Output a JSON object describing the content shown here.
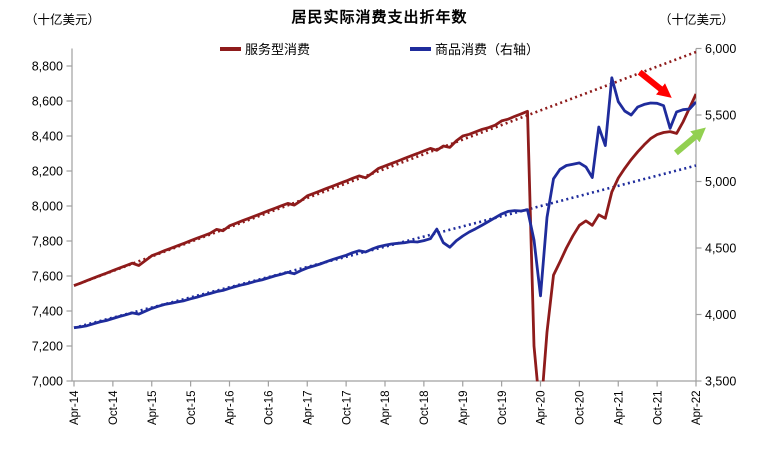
{
  "header": {
    "left_unit": "（十亿美元）",
    "title": "居民实际消费支出折年数",
    "right_unit": "（十亿美元）"
  },
  "legend": {
    "services": {
      "label": "服务型消费",
      "color": "#8E1B1B"
    },
    "goods": {
      "label": "商品消费（右轴）",
      "color": "#1F2C9C"
    }
  },
  "chart_data": {
    "type": "line",
    "title": "居民实际消费支出折年数",
    "unit_left": "（十亿美元）",
    "unit_right": "（十亿美元）",
    "frequency": "monthly",
    "x_start": "Apr-14",
    "x_end": "Apr-22",
    "x_tick_labels": [
      "Apr-14",
      "Oct-14",
      "Apr-15",
      "Oct-15",
      "Apr-16",
      "Oct-16",
      "Apr-17",
      "Oct-17",
      "Apr-18",
      "Oct-18",
      "Apr-19",
      "Oct-19",
      "Apr-20",
      "Oct-20",
      "Apr-21",
      "Oct-21",
      "Apr-22"
    ],
    "left_axis": {
      "min": 7000,
      "max": 8900,
      "ticks": [
        7000,
        7200,
        7400,
        7600,
        7800,
        8000,
        8200,
        8400,
        8600,
        8800
      ]
    },
    "right_axis": {
      "min": 3500,
      "max": 6000,
      "ticks": [
        3500,
        4000,
        4500,
        5000,
        5500,
        6000
      ]
    },
    "grid": false,
    "legend_position": "top-center",
    "series": [
      {
        "name": "服务型消费",
        "axis": "left",
        "color": "#8E1B1B",
        "style": "solid",
        "values": [
          7545,
          7559,
          7574,
          7588,
          7602,
          7616,
          7631,
          7645,
          7659,
          7673,
          7660,
          7688,
          7716,
          7730,
          7745,
          7759,
          7773,
          7787,
          7802,
          7816,
          7830,
          7844,
          7866,
          7858,
          7887,
          7901,
          7916,
          7930,
          7944,
          7958,
          7973,
          7987,
          8001,
          8015,
          8005,
          8030,
          8058,
          8072,
          8086,
          8101,
          8115,
          8129,
          8143,
          8158,
          8172,
          8161,
          8186,
          8215,
          8229,
          8243,
          8257,
          8272,
          8286,
          8300,
          8315,
          8329,
          8318,
          8343,
          8335,
          8372,
          8400,
          8410,
          8424,
          8438,
          8448,
          8462,
          8486,
          8496,
          8512,
          8526,
          8541,
          7200,
          6800,
          7280,
          7605,
          7680,
          7760,
          7830,
          7890,
          7915,
          7890,
          7950,
          7930,
          8080,
          8160,
          8215,
          8265,
          8310,
          8350,
          8385,
          8408,
          8420,
          8425,
          8415,
          8480,
          8560,
          8640
        ]
      },
      {
        "name": "商品消费（右轴）",
        "axis": "right",
        "color": "#1F2C9C",
        "style": "solid",
        "values": [
          3900,
          3907,
          3916,
          3930,
          3944,
          3955,
          3970,
          3985,
          3998,
          4012,
          4003,
          4025,
          4046,
          4062,
          4076,
          4085,
          4095,
          4104,
          4118,
          4131,
          4145,
          4158,
          4172,
          4181,
          4197,
          4211,
          4224,
          4235,
          4250,
          4260,
          4275,
          4290,
          4302,
          4317,
          4306,
          4330,
          4350,
          4365,
          4380,
          4398,
          4415,
          4430,
          4445,
          4465,
          4480,
          4470,
          4492,
          4510,
          4520,
          4530,
          4535,
          4540,
          4548,
          4545,
          4556,
          4570,
          4642,
          4540,
          4506,
          4554,
          4590,
          4620,
          4645,
          4672,
          4700,
          4728,
          4756,
          4775,
          4781,
          4778,
          4788,
          4560,
          4140,
          4730,
          5020,
          5090,
          5120,
          5130,
          5140,
          5110,
          5030,
          5410,
          5270,
          5780,
          5600,
          5530,
          5500,
          5560,
          5580,
          5590,
          5588,
          5570,
          5400,
          5523,
          5540,
          5545,
          5598
        ]
      },
      {
        "name": "服务型消费趋势线",
        "axis": "left",
        "color": "#8E1B1B",
        "style": "dotted",
        "trend_from": 7545,
        "trend_to": 8880
      },
      {
        "name": "商品消费趋势线",
        "axis": "right",
        "color": "#1F2C9C",
        "style": "dotted",
        "trend_from": 3900,
        "trend_to": 5120
      }
    ],
    "annotations": [
      {
        "name": "red-arrow",
        "shape": "arrow",
        "color": "#FF0000",
        "direction": "down-right",
        "from": {
          "m": 87.3,
          "axis": "left",
          "value": 8765
        },
        "to": {
          "m": 91.0,
          "axis": "left",
          "value": 8655
        }
      },
      {
        "name": "green-arrow",
        "shape": "arrow",
        "color": "#92D050",
        "direction": "up-right",
        "from": {
          "m": 92.9,
          "axis": "right",
          "value": 5215
        },
        "to": {
          "m": 96.3,
          "axis": "right",
          "value": 5355
        }
      }
    ]
  }
}
